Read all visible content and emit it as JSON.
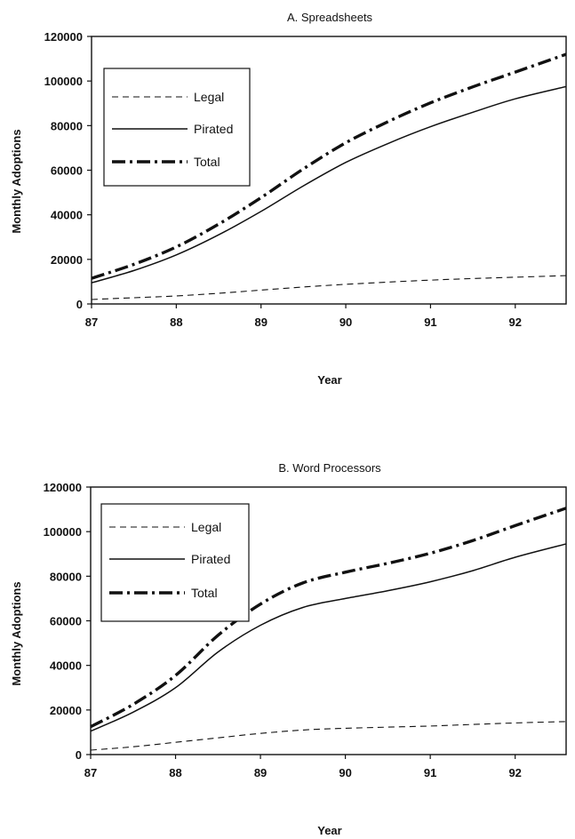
{
  "chart_data": [
    {
      "type": "line",
      "title": "A. Spreadsheets",
      "xlabel": "Year",
      "ylabel": "Monthly Adoptions",
      "xlim": [
        87,
        92.6
      ],
      "ylim": [
        0,
        120000
      ],
      "xticks": [
        "87",
        "88",
        "89",
        "90",
        "91",
        "92"
      ],
      "yticks": [
        "0",
        "20000",
        "40000",
        "60000",
        "80000",
        "100000",
        "120000"
      ],
      "legend_position": "top-left",
      "grid": false,
      "x": [
        87,
        87.5,
        88,
        88.5,
        89,
        89.5,
        90,
        90.5,
        91,
        91.5,
        92,
        92.6
      ],
      "series": [
        {
          "name": "Legal",
          "style": "dashed",
          "values": [
            2000,
            2800,
            3600,
            4800,
            6200,
            7600,
            8800,
            9800,
            10700,
            11400,
            12000,
            12700
          ]
        },
        {
          "name": "Pirated",
          "style": "solid",
          "values": [
            9500,
            15000,
            22000,
            31000,
            41500,
            53000,
            63500,
            72000,
            79500,
            86000,
            92000,
            97500
          ]
        },
        {
          "name": "Total",
          "style": "dash-dot",
          "values": [
            11500,
            17800,
            25600,
            35800,
            47700,
            60600,
            72300,
            81800,
            90200,
            97400,
            104000,
            112000
          ]
        }
      ]
    },
    {
      "type": "line",
      "title": "B. Word Processors",
      "xlabel": "Year",
      "ylabel": "Monthly Adoptions",
      "xlim": [
        87,
        92.6
      ],
      "ylim": [
        0,
        120000
      ],
      "xticks": [
        "87",
        "88",
        "89",
        "90",
        "91",
        "92"
      ],
      "yticks": [
        "0",
        "20000",
        "40000",
        "60000",
        "80000",
        "100000",
        "120000"
      ],
      "legend_position": "top-left",
      "grid": false,
      "x": [
        87,
        87.5,
        88,
        88.5,
        89,
        89.5,
        90,
        90.5,
        91,
        91.5,
        92,
        92.6
      ],
      "series": [
        {
          "name": "Legal",
          "style": "dashed",
          "values": [
            2000,
            3500,
            5500,
            7500,
            9500,
            11000,
            11800,
            12300,
            12800,
            13500,
            14200,
            14800
          ]
        },
        {
          "name": "Pirated",
          "style": "solid",
          "values": [
            10500,
            19000,
            30000,
            46000,
            58000,
            66000,
            70000,
            73500,
            77500,
            82500,
            88500,
            94500
          ]
        },
        {
          "name": "Total",
          "style": "dash-dot",
          "values": [
            12500,
            22500,
            35500,
            53500,
            67500,
            77000,
            81800,
            85800,
            90300,
            96000,
            102700,
            110500
          ]
        }
      ]
    }
  ]
}
